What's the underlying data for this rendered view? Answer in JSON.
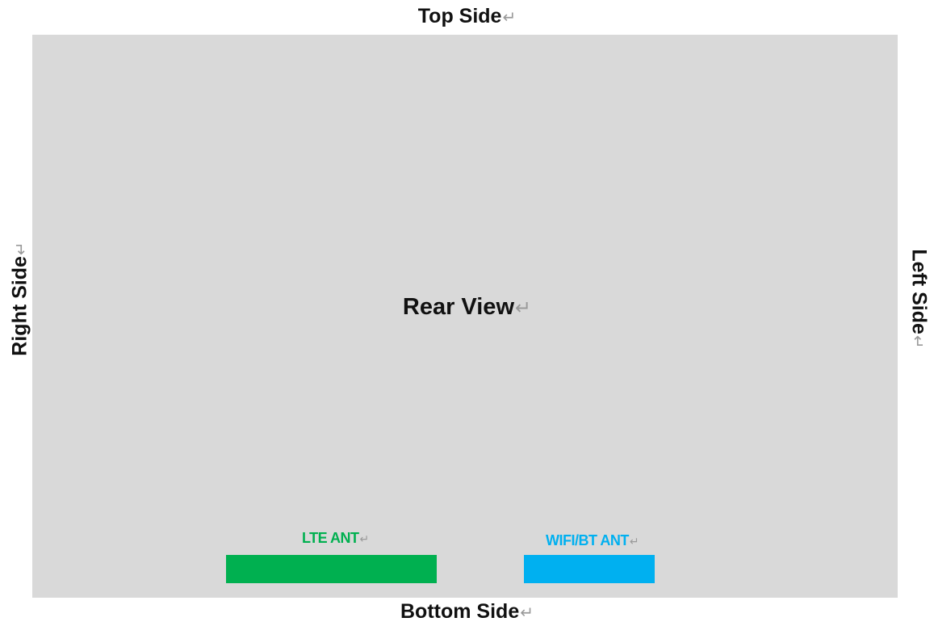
{
  "labels": {
    "top": "Top Side",
    "bottom": "Bottom Side",
    "right": "Right Side",
    "left": "Left Side",
    "center": "Rear View",
    "return_mark": "↵"
  },
  "antennas": [
    {
      "label": "LTE ANT",
      "color": "#00b050"
    },
    {
      "label": "WIFI/BT ANT",
      "color": "#00b0f0"
    }
  ],
  "colors": {
    "panel": "#d9d9d9",
    "text": "#111111",
    "return_mark": "#9a9a9a"
  }
}
